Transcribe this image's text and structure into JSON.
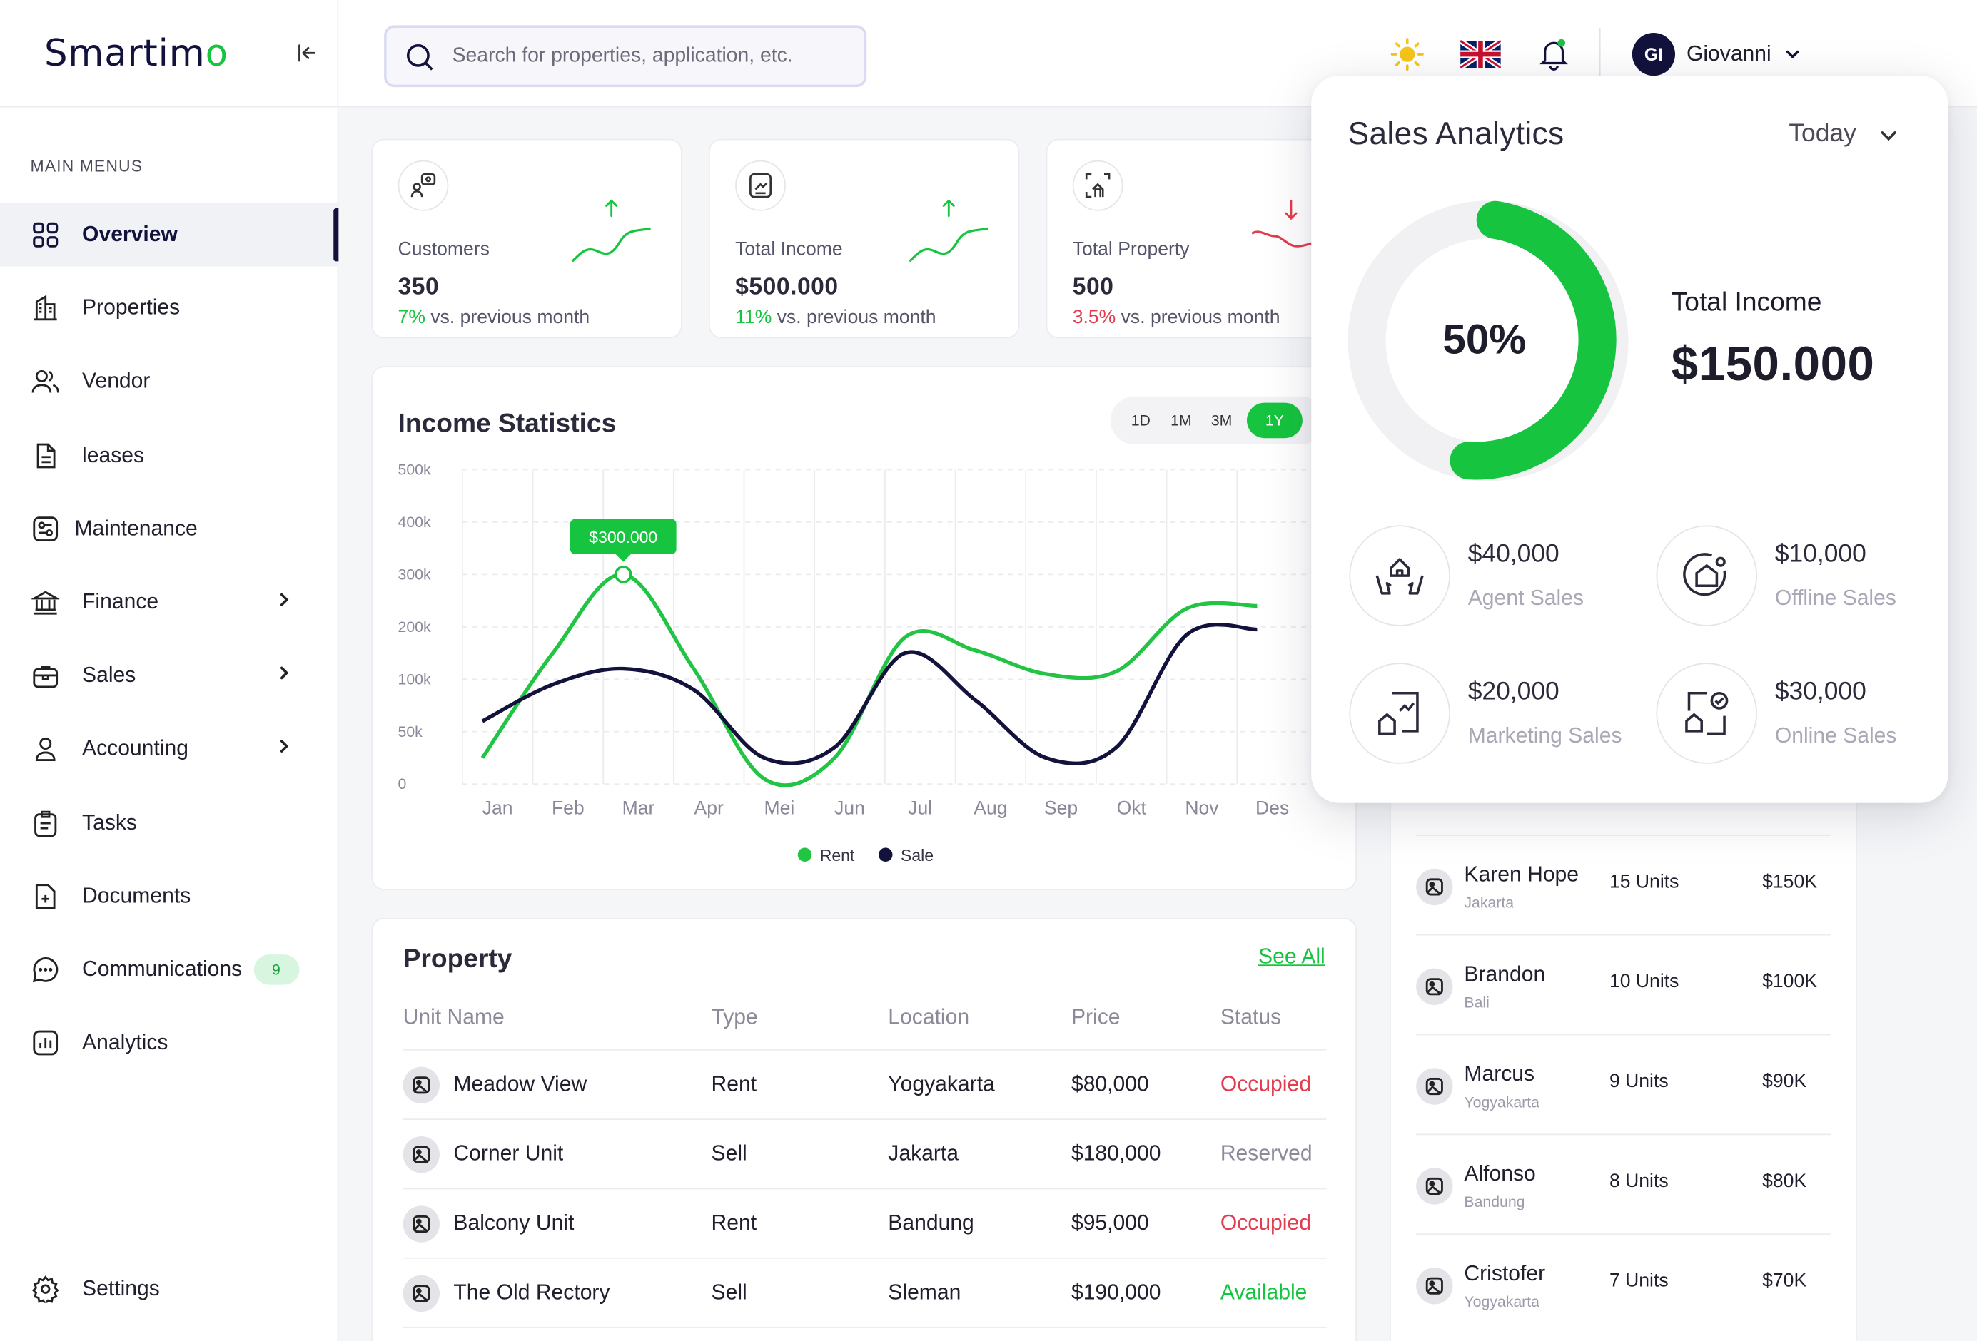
{
  "app": {
    "logo_text": "Smartim",
    "logo_tail": "o"
  },
  "sidebar": {
    "section_title": "MAIN MENUS",
    "items": [
      {
        "label": "Overview",
        "icon": "grid-icon"
      },
      {
        "label": "Properties",
        "icon": "building-icon"
      },
      {
        "label": "Vendor",
        "icon": "users-icon"
      },
      {
        "label": "leases",
        "icon": "document-icon"
      },
      {
        "label": "Maintenance",
        "icon": "tools-icon"
      },
      {
        "label": "Finance",
        "icon": "bank-icon"
      },
      {
        "label": "Sales",
        "icon": "briefcase-icon"
      },
      {
        "label": "Accounting",
        "icon": "user-icon"
      },
      {
        "label": "Tasks",
        "icon": "clipboard-icon"
      },
      {
        "label": "Documents",
        "icon": "folder-plus-icon"
      },
      {
        "label": "Communications",
        "icon": "chat-icon",
        "badge": "9"
      },
      {
        "label": "Analytics",
        "icon": "bar-chart-icon"
      }
    ],
    "settings_label": "Settings"
  },
  "topbar": {
    "search_placeholder": "Search for properties, application, etc.",
    "user_initials": "GI",
    "user_name": "Giovanni"
  },
  "stats": [
    {
      "label": "Customers",
      "value": "350",
      "change": "7%",
      "suffix": "vs. previous month",
      "trend": "up"
    },
    {
      "label": "Total Income",
      "value": "$500.000",
      "change": "11%",
      "suffix": "vs. previous month",
      "trend": "up"
    },
    {
      "label": "Total Property",
      "value": "500",
      "change": "3.5%",
      "suffix": "vs. previous month",
      "trend": "down"
    }
  ],
  "income": {
    "title": "Income Statistics",
    "ranges": [
      "1D",
      "1M",
      "3M",
      "1Y"
    ],
    "active_range": "1Y",
    "tooltip": "$300.000"
  },
  "chart_data": {
    "type": "line",
    "categories": [
      "Jan",
      "Feb",
      "Mar",
      "Apr",
      "Mei",
      "Jun",
      "Jul",
      "Aug",
      "Sep",
      "Okt",
      "Nov",
      "Des"
    ],
    "y_ticks": [
      "0",
      "50k",
      "100k",
      "200k",
      "300k",
      "400k",
      "500k"
    ],
    "series": [
      {
        "name": "Rent",
        "color": "#22c444",
        "values": [
          25000,
          150000,
          300000,
          120000,
          5000,
          25000,
          180000,
          155000,
          110000,
          115000,
          235000,
          240000
        ]
      },
      {
        "name": "Sale",
        "color": "#13123d",
        "values": [
          60000,
          95000,
          120000,
          90000,
          25000,
          35000,
          150000,
          80000,
          25000,
          35000,
          185000,
          195000
        ]
      }
    ],
    "grid": true,
    "legend": "bottom"
  },
  "property": {
    "title": "Property",
    "see_all": "See All",
    "columns": [
      "Unit Name",
      "Type",
      "Location",
      "Price",
      "Status"
    ],
    "rows": [
      {
        "name": "Meadow View",
        "type": "Rent",
        "location": "Yogyakarta",
        "price": "$80,000",
        "status": "Occupied",
        "status_key": "occupied"
      },
      {
        "name": "Corner Unit",
        "type": "Sell",
        "location": "Jakarta",
        "price": "$180,000",
        "status": "Reserved",
        "status_key": "reserved"
      },
      {
        "name": "Balcony Unit",
        "type": "Rent",
        "location": "Bandung",
        "price": "$95,000",
        "status": "Occupied",
        "status_key": "occupied"
      },
      {
        "name": "The Old Rectory",
        "type": "Sell",
        "location": "Sleman",
        "price": "$190,000",
        "status": "Available",
        "status_key": "available"
      }
    ]
  },
  "agents": {
    "rows": [
      {
        "name": "Karen Hope",
        "city": "Jakarta",
        "units": "15 Units",
        "profit": "$150K"
      },
      {
        "name": "Brandon",
        "city": "Bali",
        "units": "10 Units",
        "profit": "$100K"
      },
      {
        "name": "Marcus",
        "city": "Yogyakarta",
        "units": "9 Units",
        "profit": "$90K"
      },
      {
        "name": "Alfonso",
        "city": "Bandung",
        "units": "8 Units",
        "profit": "$80K"
      },
      {
        "name": "Cristofer",
        "city": "Yogyakarta",
        "units": "7 Units",
        "profit": "$70K"
      }
    ]
  },
  "sales_analytics": {
    "title": "Sales Analytics",
    "period": "Today",
    "percent_label": "50%",
    "percent_value": 0.5,
    "total_label": "Total Income",
    "total_value": "$150.000",
    "items": [
      {
        "amount": "$40,000",
        "label": "Agent Sales",
        "icon": "hands-house-icon"
      },
      {
        "amount": "$10,000",
        "label": "Offline Sales",
        "icon": "house-target-icon"
      },
      {
        "amount": "$20,000",
        "label": "Marketing Sales",
        "icon": "chart-house-icon"
      },
      {
        "amount": "$30,000",
        "label": "Online Sales",
        "icon": "house-check-icon"
      }
    ],
    "accent": "#16c43f"
  }
}
